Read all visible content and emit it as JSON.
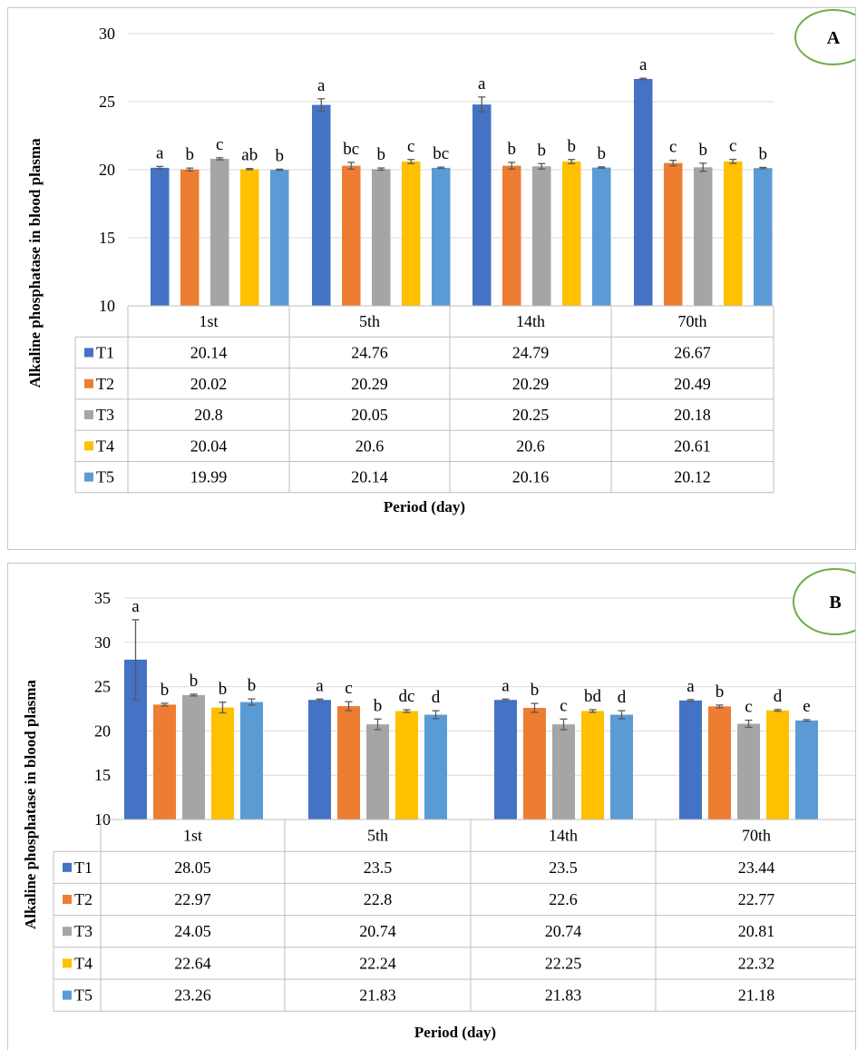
{
  "colors": {
    "T1": "#4472C4",
    "T2": "#ED7D31",
    "T3": "#A5A5A5",
    "T4": "#FFC000",
    "T5": "#5B9BD5",
    "badge": "#70AD47",
    "grid": "#D9D9D9",
    "table": "#BFBFBF",
    "error_bar": "#595959"
  },
  "chart_data": [
    {
      "type": "bar",
      "panel_label": "A",
      "ylabel": "Alkaline phosphatase in blood plasma",
      "xlabel": "Period (day)",
      "ylim": [
        10,
        30
      ],
      "yticks": [
        "10",
        "15",
        "20",
        "25",
        "30"
      ],
      "categories": [
        "1st",
        "5th",
        "14th",
        "70th"
      ],
      "series": [
        {
          "name": "T1",
          "values": [
            20.14,
            24.76,
            24.79,
            26.67
          ],
          "value_labels": [
            "20.14",
            "24.76",
            "24.79",
            "26.67"
          ],
          "errors": [
            0.1,
            0.45,
            0.55,
            0.05
          ],
          "letters": [
            "a",
            "a",
            "a",
            "a"
          ]
        },
        {
          "name": "T2",
          "values": [
            20.02,
            20.29,
            20.29,
            20.49
          ],
          "value_labels": [
            "20.02",
            "20.29",
            "20.29",
            "20.49"
          ],
          "errors": [
            0.1,
            0.25,
            0.25,
            0.2
          ],
          "letters": [
            "b",
            "bc",
            "b",
            "c"
          ]
        },
        {
          "name": "T3",
          "values": [
            20.8,
            20.05,
            20.25,
            20.18
          ],
          "value_labels": [
            "20.8",
            "20.05",
            "20.25",
            "20.18"
          ],
          "errors": [
            0.08,
            0.08,
            0.2,
            0.3
          ],
          "letters": [
            "c",
            "b",
            "b",
            "b"
          ]
        },
        {
          "name": "T4",
          "values": [
            20.04,
            20.6,
            20.6,
            20.61
          ],
          "value_labels": [
            "20.04",
            "20.6",
            "20.6",
            "20.61"
          ],
          "errors": [
            0.05,
            0.15,
            0.15,
            0.15
          ],
          "letters": [
            "ab",
            "c",
            "b",
            "c"
          ]
        },
        {
          "name": "T5",
          "values": [
            19.99,
            20.14,
            20.16,
            20.12
          ],
          "value_labels": [
            "19.99",
            "20.14",
            "20.16",
            "20.12"
          ],
          "errors": [
            0.05,
            0.05,
            0.05,
            0.05
          ],
          "letters": [
            "b",
            "bc",
            "b",
            "b"
          ]
        }
      ]
    },
    {
      "type": "bar",
      "panel_label": "B",
      "ylabel": "Alkaline phosphatase in blood plasma",
      "xlabel": "Period (day)",
      "ylim": [
        10,
        35
      ],
      "yticks": [
        "10",
        "15",
        "20",
        "25",
        "30",
        "35"
      ],
      "categories": [
        "1st",
        "5th",
        "14th",
        "70th"
      ],
      "series": [
        {
          "name": "T1",
          "values": [
            28.05,
            23.5,
            23.5,
            23.44
          ],
          "value_labels": [
            "28.05",
            "23.5",
            "23.5",
            "23.44"
          ],
          "errors": [
            4.5,
            0.1,
            0.1,
            0.1
          ],
          "letters": [
            "a",
            "a",
            "a",
            "a"
          ]
        },
        {
          "name": "T2",
          "values": [
            22.97,
            22.8,
            22.6,
            22.77
          ],
          "value_labels": [
            "22.97",
            "22.8",
            "22.6",
            "22.77"
          ],
          "errors": [
            0.15,
            0.5,
            0.5,
            0.15
          ],
          "letters": [
            "b",
            "c",
            "b",
            "b"
          ]
        },
        {
          "name": "T3",
          "values": [
            24.05,
            20.74,
            20.74,
            20.81
          ],
          "value_labels": [
            "24.05",
            "20.74",
            "20.74",
            "20.81"
          ],
          "errors": [
            0.1,
            0.6,
            0.6,
            0.4
          ],
          "letters": [
            "b",
            "b",
            "c",
            "c"
          ]
        },
        {
          "name": "T4",
          "values": [
            22.64,
            22.24,
            22.25,
            22.32
          ],
          "value_labels": [
            "22.64",
            "22.24",
            "22.25",
            "22.32"
          ],
          "errors": [
            0.6,
            0.15,
            0.15,
            0.1
          ],
          "letters": [
            "b",
            "dc",
            "bd",
            "d"
          ]
        },
        {
          "name": "T5",
          "values": [
            23.26,
            21.83,
            21.83,
            21.18
          ],
          "value_labels": [
            "23.26",
            "21.83",
            "21.83",
            "21.18"
          ],
          "errors": [
            0.35,
            0.45,
            0.45,
            0.1
          ],
          "letters": [
            "b",
            "d",
            "d",
            "e"
          ]
        }
      ]
    }
  ]
}
